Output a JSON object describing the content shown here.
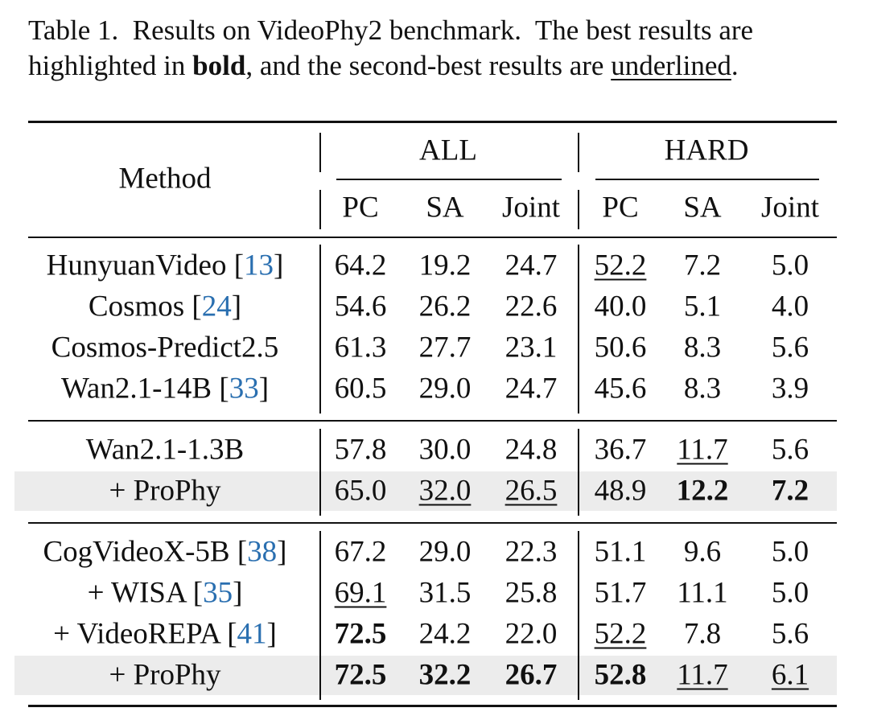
{
  "caption": {
    "lines": [
      [
        {
          "text": "Table 1.  Results on VideoPhy2 benchmark.  The best results are"
        }
      ],
      [
        {
          "text": "highlighted in "
        },
        {
          "text": "bold",
          "style": "bold"
        },
        {
          "text": ", and the second-best results are "
        },
        {
          "text": "underlined",
          "style": "underline"
        },
        {
          "text": "."
        }
      ]
    ]
  },
  "table": {
    "method_header": "Method",
    "groups": [
      "ALL",
      "HARD"
    ],
    "columns": [
      "PC",
      "SA",
      "Joint",
      "PC",
      "SA",
      "Joint"
    ],
    "sections": [
      [
        {
          "name": "HunyuanVideo ",
          "cite": [
            "[",
            "13",
            "]"
          ],
          "cells": [
            {
              "text": "64.2"
            },
            {
              "text": "19.2"
            },
            {
              "text": "24.7"
            },
            {
              "text": "52.2",
              "style": "underline"
            },
            {
              "text": "7.2"
            },
            {
              "text": "5.0"
            }
          ]
        },
        {
          "name": "Cosmos ",
          "cite": [
            "[",
            "24",
            "]"
          ],
          "cells": [
            {
              "text": "54.6"
            },
            {
              "text": "26.2"
            },
            {
              "text": "22.6"
            },
            {
              "text": "40.0"
            },
            {
              "text": "5.1"
            },
            {
              "text": "4.0"
            }
          ]
        },
        {
          "name": "Cosmos-Predict2.5",
          "cells": [
            {
              "text": "61.3"
            },
            {
              "text": "27.7"
            },
            {
              "text": "23.1"
            },
            {
              "text": "50.6"
            },
            {
              "text": "8.3"
            },
            {
              "text": "5.6"
            }
          ]
        },
        {
          "name": "Wan2.1-14B ",
          "cite": [
            "[",
            "33",
            "]"
          ],
          "cells": [
            {
              "text": "60.5"
            },
            {
              "text": "29.0"
            },
            {
              "text": "24.7"
            },
            {
              "text": "45.6"
            },
            {
              "text": "8.3"
            },
            {
              "text": "3.9"
            }
          ]
        }
      ],
      [
        {
          "name": "Wan2.1-1.3B",
          "cells": [
            {
              "text": "57.8"
            },
            {
              "text": "30.0"
            },
            {
              "text": "24.8"
            },
            {
              "text": "36.7"
            },
            {
              "text": "11.7",
              "style": "underline"
            },
            {
              "text": "5.6"
            }
          ]
        },
        {
          "name": "+ ProPhy",
          "highlight": true,
          "cells": [
            {
              "text": "65.0"
            },
            {
              "text": "32.0",
              "style": "underline"
            },
            {
              "text": "26.5",
              "style": "underline"
            },
            {
              "text": "48.9"
            },
            {
              "text": "12.2",
              "style": "bold"
            },
            {
              "text": "7.2",
              "style": "bold"
            }
          ]
        }
      ],
      [
        {
          "name": "CogVideoX-5B ",
          "cite": [
            "[",
            "38",
            "]"
          ],
          "cells": [
            {
              "text": "67.2"
            },
            {
              "text": "29.0"
            },
            {
              "text": "22.3"
            },
            {
              "text": "51.1"
            },
            {
              "text": "9.6"
            },
            {
              "text": "5.0"
            }
          ]
        },
        {
          "name": "+ WISA ",
          "cite": [
            "[",
            "35",
            "]"
          ],
          "cells": [
            {
              "text": "69.1",
              "style": "underline"
            },
            {
              "text": "31.5"
            },
            {
              "text": "25.8"
            },
            {
              "text": "51.7"
            },
            {
              "text": "11.1"
            },
            {
              "text": "5.0"
            }
          ]
        },
        {
          "name": "+ VideoREPA ",
          "cite": [
            "[",
            "41",
            "]"
          ],
          "cells": [
            {
              "text": "72.5",
              "style": "bold"
            },
            {
              "text": "24.2"
            },
            {
              "text": "22.0"
            },
            {
              "text": "52.2",
              "style": "underline"
            },
            {
              "text": "7.8"
            },
            {
              "text": "5.6"
            }
          ]
        },
        {
          "name": "+ ProPhy",
          "highlight": true,
          "cells": [
            {
              "text": "72.5",
              "style": "bold"
            },
            {
              "text": "32.2",
              "style": "bold"
            },
            {
              "text": "26.7",
              "style": "bold"
            },
            {
              "text": "52.8",
              "style": "bold"
            },
            {
              "text": "11.7",
              "style": "underline"
            },
            {
              "text": "6.1",
              "style": "underline"
            }
          ]
        }
      ]
    ]
  }
}
